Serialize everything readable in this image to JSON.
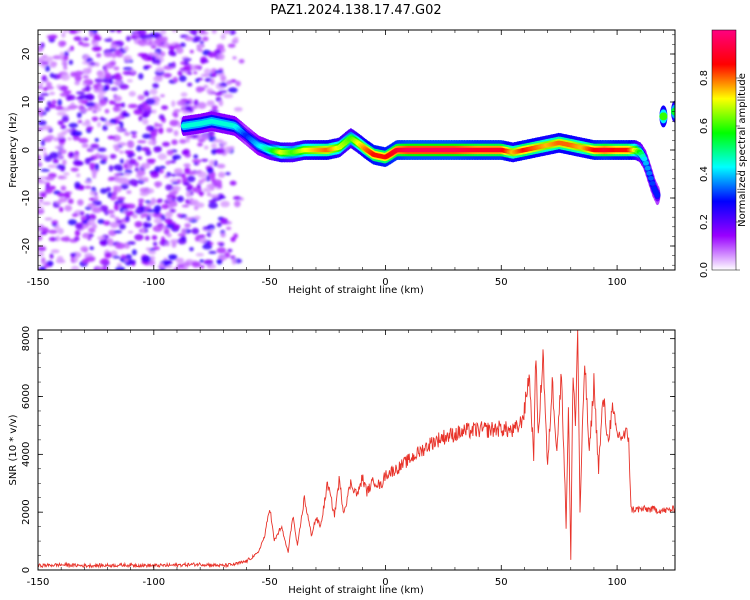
{
  "title": "PAZ1.2024.138.17.47.G02",
  "chart_data": [
    {
      "type": "heatmap",
      "xlabel": "Height of straight line (km)",
      "ylabel": "Frequency (Hz)",
      "xlim": [
        -150,
        125
      ],
      "ylim": [
        -25,
        25
      ],
      "xticks": [
        -150,
        -100,
        -50,
        0,
        50,
        100
      ],
      "yticks": [
        -20,
        -10,
        0,
        10,
        20
      ],
      "grid": false,
      "colorbar": {
        "label": "Normalized spectral amplitude",
        "range": [
          0.0,
          1.0
        ],
        "ticks": [
          "0.0",
          "0.2",
          "0.4",
          "0.6",
          "0.8"
        ],
        "colors": [
          "#ffffff",
          "#9900ff",
          "#0000ff",
          "#00ffff",
          "#00ff00",
          "#ffff00",
          "#ff0000",
          "#ff0080"
        ]
      },
      "noise_region": {
        "x_from": -150,
        "x_to": -70,
        "y_from": -25,
        "y_to": 25,
        "amplitude": 0.25
      },
      "ridge": {
        "x": [
          -87,
          -80,
          -75,
          -70,
          -65,
          -60,
          -55,
          -50,
          -45,
          -40,
          -35,
          -30,
          -25,
          -20,
          -15,
          -12,
          -8,
          -5,
          0,
          5,
          10,
          20,
          30,
          40,
          50,
          55,
          60,
          65,
          70,
          75,
          80,
          85,
          90,
          95,
          100,
          105,
          108,
          110,
          112,
          114,
          116,
          118
        ],
        "y": [
          5.0,
          5.5,
          6.0,
          5.5,
          5.0,
          3.0,
          1.0,
          0.0,
          -0.5,
          -0.5,
          0.0,
          0.0,
          0.0,
          0.5,
          2.5,
          1.5,
          0.0,
          -1.0,
          -1.5,
          0.0,
          0.0,
          0.0,
          0.0,
          0.0,
          0.0,
          -0.5,
          0.0,
          0.5,
          1.0,
          1.5,
          1.0,
          0.5,
          0.0,
          0.0,
          0.0,
          0.0,
          0.0,
          -0.5,
          -2.0,
          -5.0,
          -8.0,
          -10.0
        ],
        "amplitude": [
          0.45,
          0.45,
          0.45,
          0.45,
          0.45,
          0.3,
          0.4,
          0.5,
          0.7,
          0.6,
          0.7,
          0.75,
          0.8,
          0.7,
          0.6,
          0.7,
          0.8,
          0.85,
          0.85,
          0.9,
          0.95,
          0.95,
          0.95,
          0.9,
          0.9,
          0.75,
          0.85,
          0.8,
          0.75,
          0.8,
          0.8,
          0.75,
          0.85,
          0.9,
          0.85,
          0.85,
          0.7,
          0.55,
          0.4,
          0.35,
          0.3,
          0.3
        ]
      },
      "right_segment": {
        "x": [
          120,
          125
        ],
        "y": [
          7,
          8
        ],
        "amplitude": [
          0.6,
          0.55
        ]
      }
    },
    {
      "type": "line",
      "xlabel": "Height of straight line (km)",
      "ylabel": "SNR (10 * v/v)",
      "xlim": [
        -150,
        125
      ],
      "ylim": [
        0,
        8300
      ],
      "xticks": [
        -150,
        -100,
        -50,
        0,
        50,
        100
      ],
      "yticks": [
        0,
        2000,
        4000,
        6000,
        8000
      ],
      "grid": false,
      "series": [
        {
          "color": "#e8332a",
          "x": [
            -150,
            -140,
            -130,
            -120,
            -110,
            -100,
            -90,
            -80,
            -70,
            -65,
            -60,
            -55,
            -52,
            -50,
            -48,
            -45,
            -42,
            -40,
            -38,
            -35,
            -32,
            -30,
            -28,
            -25,
            -22,
            -20,
            -18,
            -15,
            -12,
            -10,
            -8,
            -5,
            -2,
            0,
            5,
            10,
            15,
            20,
            25,
            30,
            35,
            40,
            45,
            50,
            55,
            58,
            60,
            62,
            64,
            65,
            66,
            68,
            70,
            72,
            74,
            76,
            78,
            79,
            80,
            81,
            82,
            83,
            84,
            86,
            88,
            90,
            92,
            94,
            96,
            98,
            100,
            102,
            104,
            105,
            106,
            110,
            115,
            120,
            125
          ],
          "y": [
            150,
            180,
            150,
            160,
            170,
            150,
            170,
            200,
            150,
            200,
            300,
            600,
            1200,
            2200,
            1000,
            1500,
            600,
            1900,
            800,
            2500,
            1200,
            1800,
            1500,
            3000,
            1900,
            3100,
            2000,
            3000,
            2600,
            3200,
            2700,
            3100,
            2900,
            3300,
            3500,
            3800,
            4100,
            4400,
            4600,
            4700,
            4800,
            4850,
            4850,
            4900,
            4800,
            5000,
            5500,
            6800,
            4000,
            7500,
            4500,
            7600,
            3500,
            6500,
            4200,
            6800,
            1500,
            5800,
            300,
            7000,
            5000,
            8300,
            2000,
            7300,
            4000,
            6500,
            3500,
            6000,
            4500,
            5500,
            4700,
            4600,
            4700,
            4600,
            2100,
            2100,
            2100,
            2050,
            2100
          ]
        }
      ]
    }
  ]
}
